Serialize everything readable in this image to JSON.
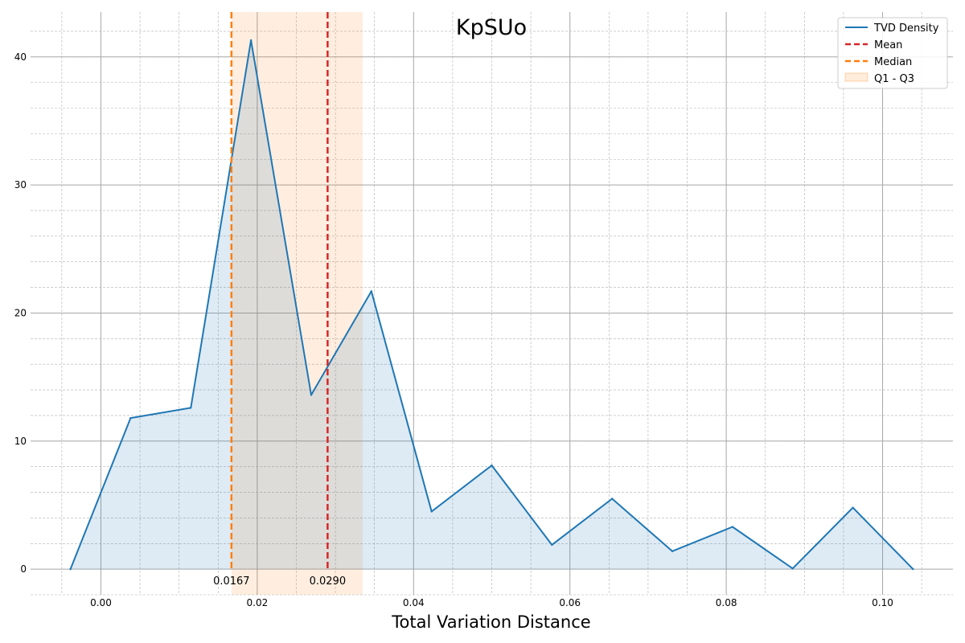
{
  "chart_data": {
    "type": "area",
    "title": "KpSUo",
    "xlabel": "Total Variation Distance",
    "ylabel": "",
    "xlim": [
      -0.009,
      0.109
    ],
    "ylim": [
      -2,
      43.5
    ],
    "xticks": [
      0.0,
      0.02,
      0.04,
      0.06,
      0.08,
      0.1
    ],
    "xtick_labels": [
      "0.00",
      "0.02",
      "0.04",
      "0.06",
      "0.08",
      "0.10"
    ],
    "yticks": [
      0,
      10,
      20,
      30,
      40
    ],
    "ytick_labels": [
      "0",
      "10",
      "20",
      "30",
      "40"
    ],
    "grid": true,
    "legend_position": "top-right",
    "series": [
      {
        "name": "TVD Density",
        "color": "#1f77b4",
        "x": [
          -0.0039,
          0.0038,
          0.0115,
          0.0192,
          0.0269,
          0.0346,
          0.0423,
          0.05,
          0.0577,
          0.0654,
          0.0731,
          0.0808,
          0.0885,
          0.0962,
          0.1039
        ],
        "y": [
          0.0,
          11.8,
          12.6,
          41.3,
          13.6,
          21.7,
          4.5,
          8.1,
          1.9,
          5.5,
          1.4,
          3.3,
          0.05,
          4.8,
          0.0
        ]
      }
    ],
    "mean": {
      "name": "Mean",
      "value": 0.029,
      "label": "0.0290",
      "color": "#d62728"
    },
    "median": {
      "name": "Median",
      "value": 0.0167,
      "label": "0.0167",
      "color": "#ff7f0e"
    },
    "iqr": {
      "name": "Q1 - Q3",
      "q1": 0.0167,
      "q3": 0.0335,
      "color": "#ff7f0e"
    }
  }
}
